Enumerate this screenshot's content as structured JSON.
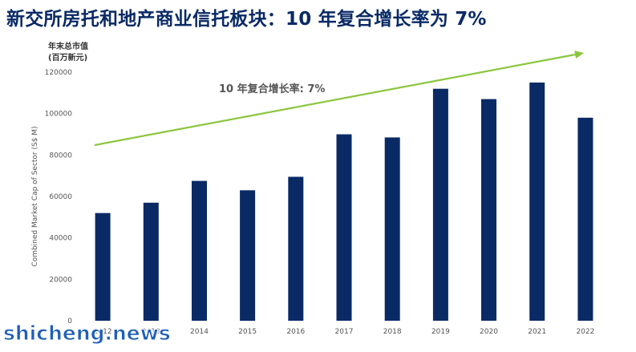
{
  "title": "新交所房托和地产商业信托板块：10 年复合增长率为 7%",
  "unit_label": [
    "年末总市值",
    "(百万新元)"
  ],
  "watermark": "shicheng.news",
  "chart_data": {
    "type": "bar",
    "categories": [
      "2012",
      "2013",
      "2014",
      "2015",
      "2016",
      "2017",
      "2018",
      "2019",
      "2020",
      "2021",
      "2022"
    ],
    "values": [
      52000,
      57000,
      67500,
      63000,
      69500,
      90000,
      88500,
      112000,
      107000,
      115000,
      98000
    ],
    "ylabel": "Combined Market Cap of Sector (S$ M)",
    "ylim": [
      0,
      120000
    ],
    "yticks": [
      0,
      20000,
      40000,
      60000,
      80000,
      100000,
      120000
    ],
    "ytick_labels": [
      "0",
      "20000",
      "40000",
      "60000",
      "80000",
      "100000",
      "120000"
    ],
    "annotation": "10 年复合增长率: 7%",
    "trend_arrow": true,
    "grid": false,
    "colors": {
      "bar": "#0a2a66",
      "arrow": "#8cc63f"
    }
  }
}
